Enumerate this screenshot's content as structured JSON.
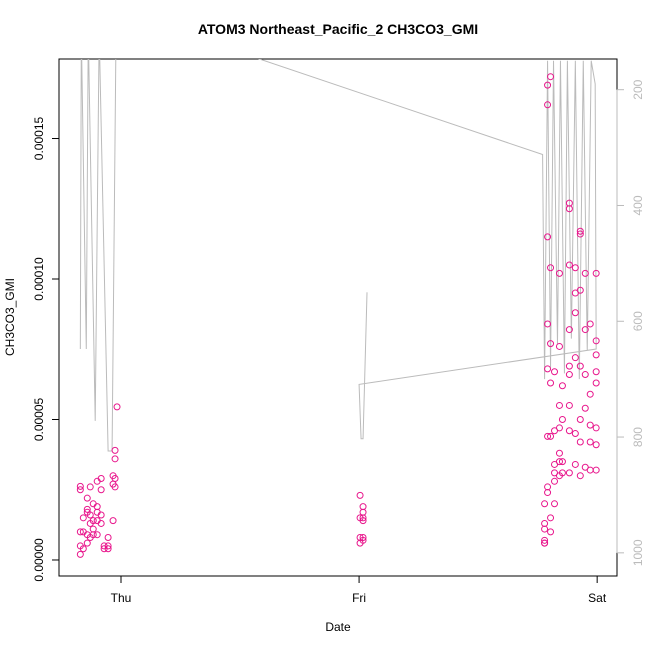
{
  "chart_data": {
    "type": "scatter",
    "title": "ATOM3 Northeast_Pacific_2 CH3CO3_GMI",
    "xlabel": "Date",
    "ylabel": "CH3CO3_GMI",
    "xlim": [
      -6.25,
      50
    ],
    "xticks": [
      {
        "value": 0,
        "label": "Thu"
      },
      {
        "value": 24,
        "label": "Fri"
      },
      {
        "value": 48,
        "label": "Sat"
      }
    ],
    "ylim": [
      -5.7e-06,
      0.0001783
    ],
    "yticks": [
      {
        "value": 0,
        "label": "0.00000"
      },
      {
        "value": 5e-05,
        "label": "0.00005"
      },
      {
        "value": 0.0001,
        "label": "0.00010"
      },
      {
        "value": 0.00015,
        "label": "0.00015"
      }
    ],
    "y2lim": [
      1040,
      147
    ],
    "y2ticks": [
      200,
      400,
      600,
      800,
      1000
    ],
    "series": [
      {
        "type": "scatter",
        "color": "#e8168c",
        "x": [
          -4.1,
          -4.1,
          -4.1,
          -4.1,
          -4.1,
          -3.8,
          -3.8,
          -3.8,
          -3.4,
          -3.4,
          -3.4,
          -3.4,
          -3.4,
          -3.1,
          -3.1,
          -3.1,
          -3.1,
          -2.8,
          -2.8,
          -2.8,
          -2.8,
          -2.4,
          -2.4,
          -2.4,
          -2.4,
          -2.4,
          -2.0,
          -2.0,
          -2.0,
          -2.0,
          -1.7,
          -1.7,
          -1.3,
          -1.3,
          -1.3,
          -0.8,
          -0.8,
          -0.8,
          -0.6,
          -0.6,
          -0.6,
          -0.6,
          -0.4,
          24.1,
          24.1,
          24.1,
          24.1,
          24.4,
          24.4,
          24.4,
          24.4,
          24.4,
          24.4,
          42.7,
          42.7,
          42.7,
          42.7,
          42.7,
          42.7,
          43.0,
          43.0,
          43.0,
          43.0,
          43.0,
          43.0,
          43.0,
          43.0,
          43.3,
          43.3,
          43.3,
          43.3,
          43.3,
          43.3,
          43.3,
          43.7,
          43.7,
          43.7,
          43.7,
          43.7,
          43.7,
          44.2,
          44.2,
          44.2,
          44.2,
          44.2,
          44.2,
          44.2,
          44.5,
          44.5,
          44.5,
          44.5,
          45.2,
          45.2,
          45.2,
          45.2,
          45.2,
          45.2,
          45.2,
          45.2,
          45.2,
          45.8,
          45.8,
          45.8,
          45.8,
          45.8,
          45.8,
          46.3,
          46.3,
          46.3,
          46.3,
          46.3,
          46.3,
          46.3,
          46.8,
          46.8,
          46.8,
          46.8,
          46.8,
          47.3,
          47.3,
          47.3,
          47.3,
          47.3,
          47.9,
          47.9,
          47.9,
          47.9,
          47.9,
          47.9,
          47.9,
          47.9
        ],
        "values": [
          2.62e-05,
          2.5e-05,
          1e-05,
          2e-06,
          5e-06,
          1.5e-05,
          1e-05,
          4e-06,
          2.2e-05,
          1.8e-05,
          1.7e-05,
          9e-06,
          6e-06,
          2.6e-05,
          1.6e-05,
          1.3e-05,
          8e-06,
          2e-05,
          1.4e-05,
          1.1e-05,
          9e-06,
          2.8e-05,
          1.9e-05,
          1.7e-05,
          1.4e-05,
          9e-06,
          2.9e-05,
          2.5e-05,
          1.6e-05,
          1.3e-05,
          5e-06,
          4e-06,
          4e-06,
          5e-06,
          8e-06,
          3e-05,
          2.7e-05,
          1.4e-05,
          3.9e-05,
          3.6e-05,
          2.6e-05,
          2.9e-05,
          5.45e-05,
          2.3e-05,
          1.5e-05,
          8e-06,
          6e-06,
          1.9e-05,
          1.7e-05,
          1.5e-05,
          1.4e-05,
          8e-06,
          7e-06,
          2e-05,
          1.3e-05,
          1.1e-05,
          7e-06,
          6e-06,
          6e-06,
          2.6e-05,
          2.4e-05,
          4.4e-05,
          6.8e-05,
          8.4e-05,
          0.000115,
          0.000162,
          0.000169,
          0.000104,
          7.7e-05,
          6.3e-05,
          4.4e-05,
          1.5e-05,
          1e-05,
          0.000172,
          6.7e-05,
          4.6e-05,
          3.4e-05,
          3.1e-05,
          2.8e-05,
          2e-05,
          5.5e-05,
          4.7e-05,
          3.8e-05,
          3.5e-05,
          3e-05,
          7.6e-05,
          0.000102,
          6.2e-05,
          5e-05,
          3.5e-05,
          3.1e-05,
          0.000127,
          0.000125,
          0.000105,
          8.2e-05,
          6.9e-05,
          6.6e-05,
          5.5e-05,
          4.6e-05,
          3.1e-05,
          0.000104,
          9.5e-05,
          8.8e-05,
          7.2e-05,
          4.5e-05,
          3.4e-05,
          0.000117,
          0.000116,
          9.6e-05,
          6.9e-05,
          5e-05,
          4.2e-05,
          3e-05,
          0.000102,
          8.2e-05,
          6.6e-05,
          5.4e-05,
          3.3e-05,
          8.4e-05,
          5.9e-05,
          4.8e-05,
          4.2e-05,
          3.2e-05,
          0.000102,
          7.8e-05,
          7.3e-05,
          6.7e-05,
          6.3e-05,
          4.7e-05,
          4.1e-05,
          3.2e-05
        ]
      },
      {
        "type": "line",
        "axis": "y2",
        "color": "#bbbbbb",
        "x": [
          -4.1,
          -4.0,
          -3.5,
          -3.3,
          -2.6,
          -2.2,
          -1.3,
          -0.9,
          -0.5,
          -0.4,
          42.5,
          42.7,
          43.0,
          43.3,
          43.6,
          44.0,
          44.3,
          44.7,
          45.0,
          45.4,
          45.8,
          46.2,
          46.6,
          47.0,
          47.4,
          47.8,
          47.9,
          24.0,
          24.2,
          24.4,
          24.8
        ],
        "values": [
          648,
          100,
          648,
          100,
          772,
          100,
          824,
          824,
          100,
          64,
          312,
          700,
          150,
          680,
          150,
          640,
          150,
          690,
          150,
          630,
          150,
          700,
          150,
          650,
          150,
          190,
          648,
          709,
          803,
          803,
          550
        ]
      }
    ]
  }
}
